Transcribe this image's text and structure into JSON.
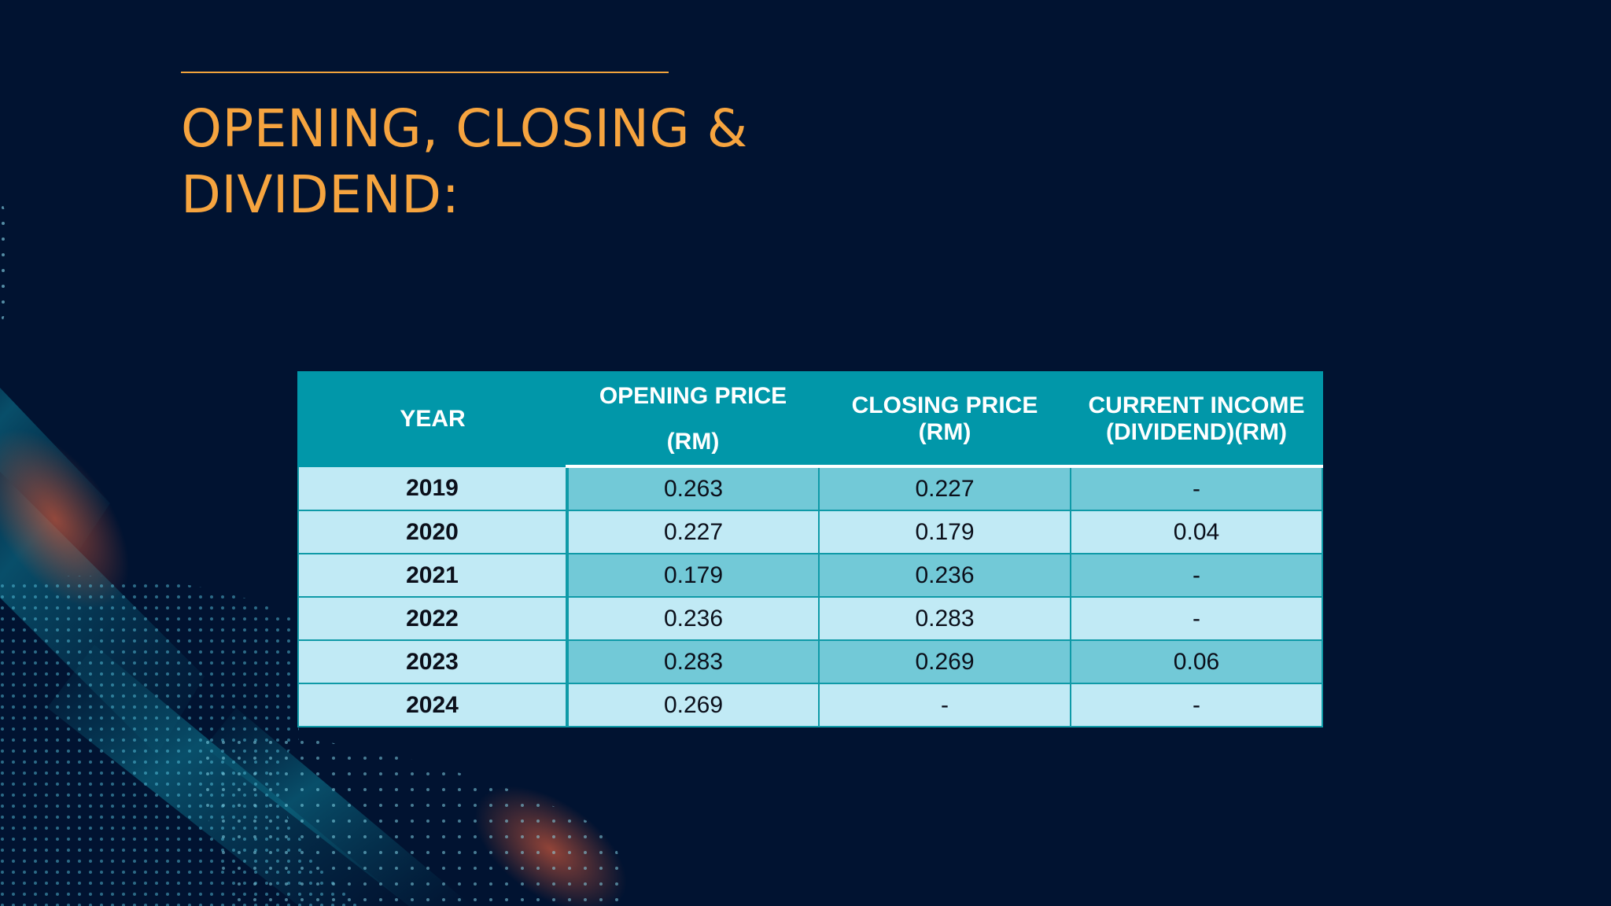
{
  "slide": {
    "title_line1": "OPENING, CLOSING &",
    "title_line2": "DIVIDEND:"
  },
  "table": {
    "headers": {
      "year": "YEAR",
      "opening_line1": "OPENING PRICE",
      "opening_line2": "(RM)",
      "closing_line1": "CLOSING PRICE",
      "closing_line2": "(RM)",
      "income_line1": "CURRENT INCOME",
      "income_line2": "(DIVIDEND)(RM)"
    },
    "rows": [
      {
        "year": "2019",
        "opening": "0.263",
        "closing": "0.227",
        "dividend": "-"
      },
      {
        "year": "2020",
        "opening": "0.227",
        "closing": "0.179",
        "dividend": "0.04"
      },
      {
        "year": "2021",
        "opening": "0.179",
        "closing": "0.236",
        "dividend": "-"
      },
      {
        "year": "2022",
        "opening": "0.236",
        "closing": "0.283",
        "dividend": "-"
      },
      {
        "year": "2023",
        "opening": "0.283",
        "closing": "0.269",
        "dividend": "0.06"
      },
      {
        "year": "2024",
        "opening": "0.269",
        "closing": "-",
        "dividend": "-"
      }
    ]
  },
  "colors": {
    "background": "#011331",
    "title": "#f6a43f",
    "header": "#0197a9",
    "row_dark": "#72c9d7",
    "row_light": "#c1eaf5"
  }
}
